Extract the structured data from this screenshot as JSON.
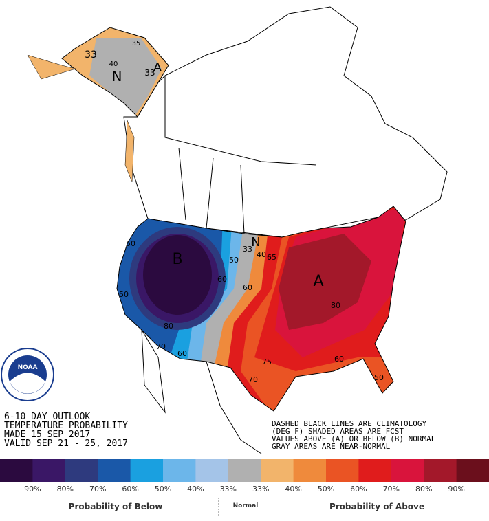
{
  "map": {
    "labels": [
      "B",
      "A",
      "N",
      "N",
      "A",
      "33",
      "35",
      "40",
      "33",
      "50",
      "60",
      "80",
      "70",
      "60",
      "50",
      "33",
      "40",
      "50",
      "60",
      "65",
      "80",
      "75",
      "70",
      "60",
      "50"
    ]
  },
  "outlook": {
    "lines": [
      "6-10 DAY OUTLOOK",
      "TEMPERATURE PROBABILITY",
      "MADE  15 SEP 2017",
      "VALID  SEP 21 - 25, 2017"
    ]
  },
  "notes": [
    "DASHED BLACK LINES ARE CLIMATOLOGY",
    "(DEG F) SHADED AREAS ARE FCST",
    "VALUES ABOVE (A) OR BELOW (B) NORMAL",
    "GRAY AREAS ARE NEAR-NORMAL"
  ],
  "legend": {
    "colors": [
      "#2b0a3f",
      "#3a1766",
      "#2e3a7e",
      "#1a58a8",
      "#1aa0e0",
      "#6cb6ea",
      "#a4c4e8",
      "#b0b0b0",
      "#f2b46b",
      "#ef8a3c",
      "#ea5424",
      "#e01c1c",
      "#d9143c",
      "#a3182a",
      "#6b0f1c"
    ],
    "labels": [
      "90%",
      "80%",
      "70%",
      "60%",
      "50%",
      "40%",
      "33%",
      "33%",
      "40%",
      "50%",
      "60%",
      "70%",
      "80%",
      "90%"
    ],
    "below": "Probability of Below",
    "normal": "Normal",
    "above": "Probability of Above"
  }
}
